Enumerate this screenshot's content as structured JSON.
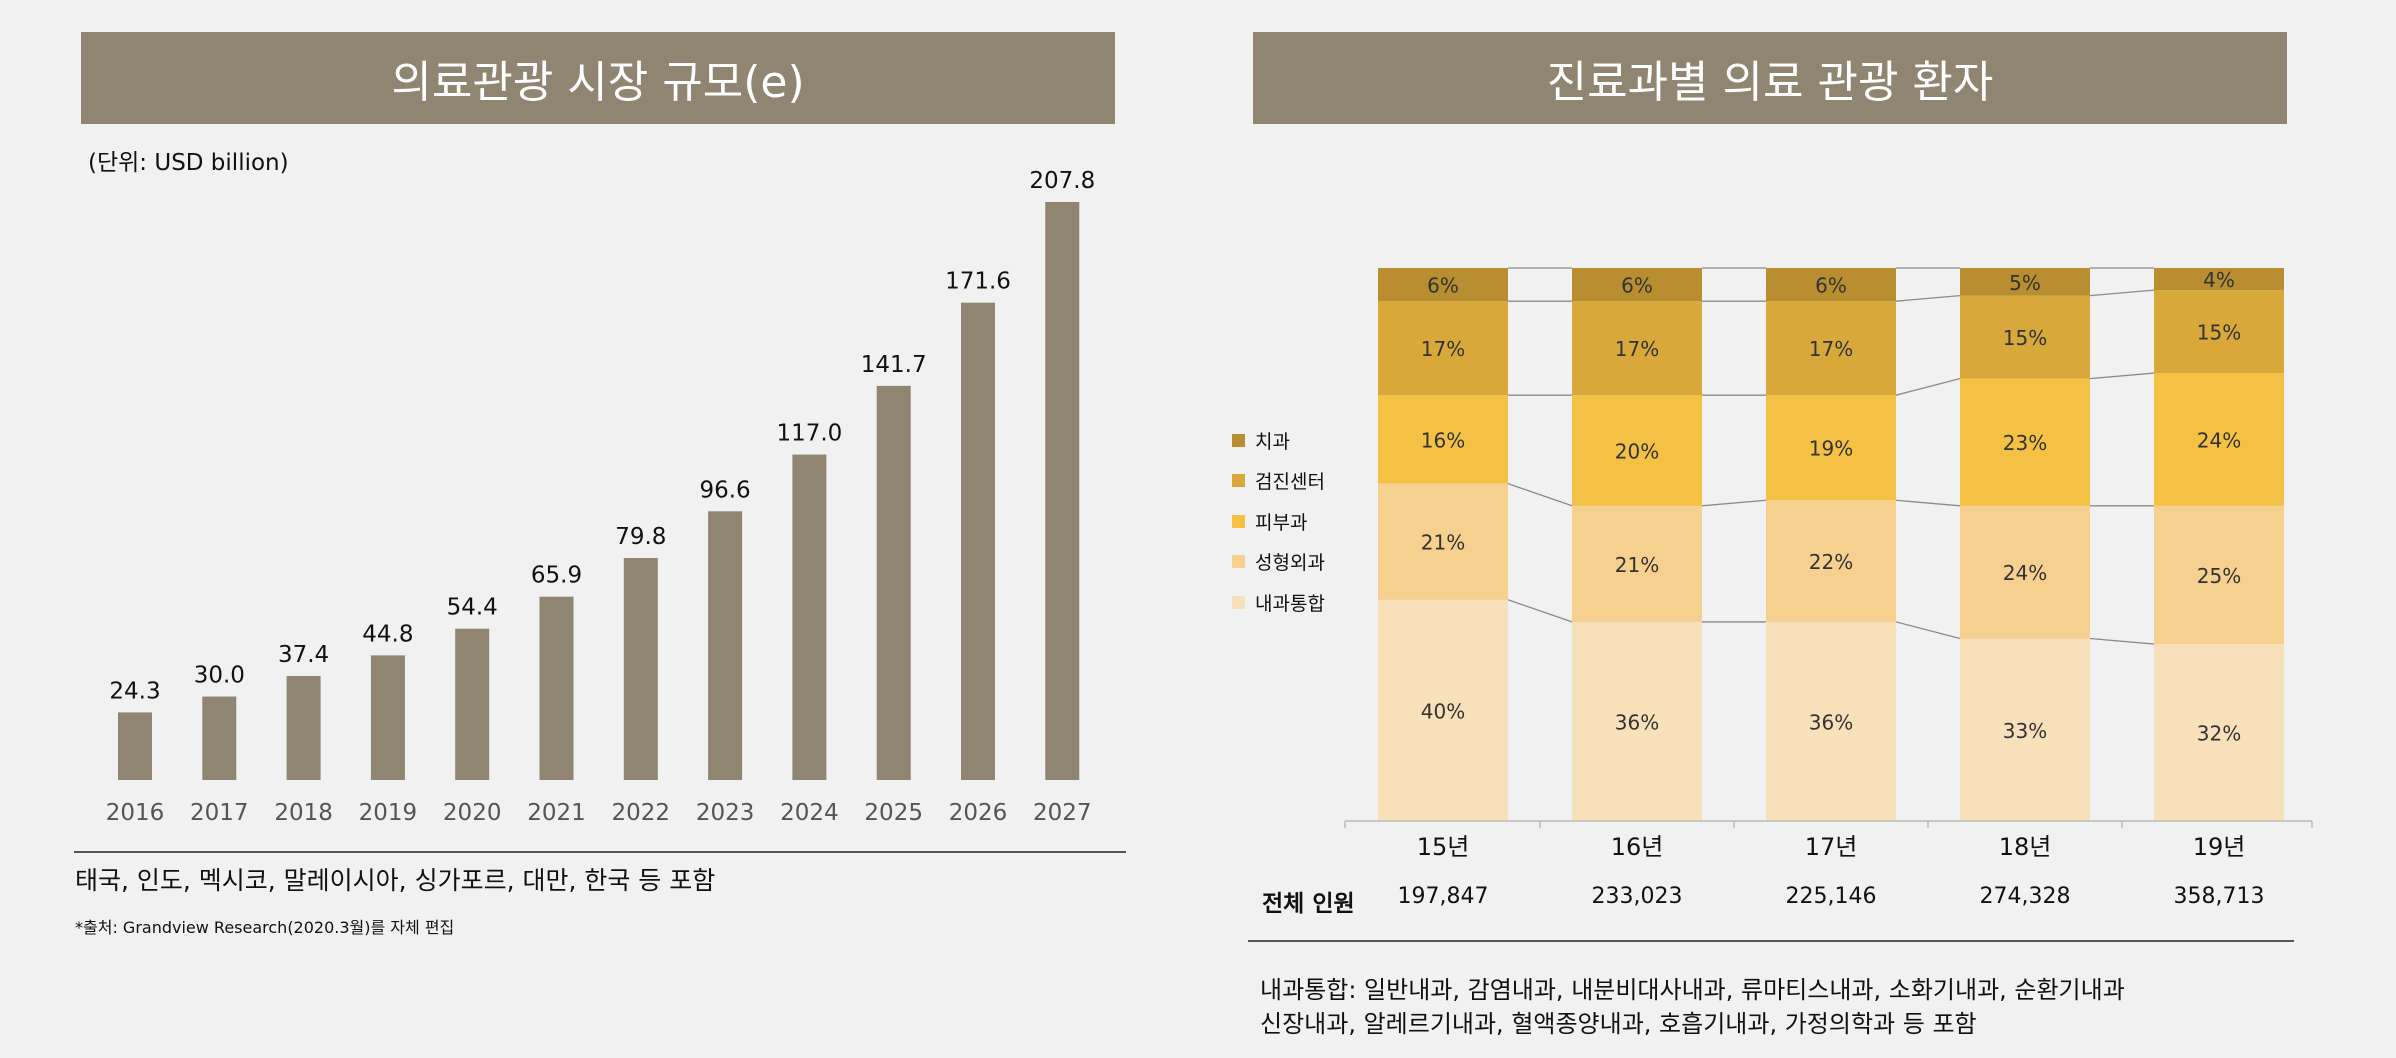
{
  "left": {
    "title": "의료관광 시장 규모(e)",
    "unit": "(단위: USD billion)",
    "note": "태국, 인도, 멕시코, 말레이시아, 싱가포르, 대만, 한국 등 포함",
    "source": "*출처: Grandview Research(2020.3월)를 자체 편집"
  },
  "right": {
    "title": "진료과별 의료 관광 환자",
    "total_label": "전체 인원",
    "totals": [
      "197,847",
      "233,023",
      "225,146",
      "274,328",
      "358,713"
    ],
    "footnote_line1": "내과통합: 일반내과, 감염내과, 내분비대사내과, 류마티스내과, 소화기내과, 순환기내과",
    "footnote_line2": "신장내과, 알레르기내과, 혈액종양내과, 호흡기내과, 가정의학과 등 포함"
  },
  "chart_data": [
    {
      "type": "bar",
      "title": "의료관광 시장 규모(e)",
      "ylabel": "(단위: USD billion)",
      "categories": [
        "2016",
        "2017",
        "2018",
        "2019",
        "2020",
        "2021",
        "2022",
        "2023",
        "2024",
        "2025",
        "2026",
        "2027"
      ],
      "values": [
        24.3,
        30.0,
        37.4,
        44.8,
        54.4,
        65.9,
        79.8,
        96.6,
        117.0,
        141.7,
        171.6,
        207.8
      ],
      "value_labels": [
        "24.3",
        "30.0",
        "37.4",
        "44.8",
        "54.4",
        "65.9",
        "79.8",
        "96.6",
        "117.0",
        "141.7",
        "171.6",
        "207.8"
      ],
      "ylim": [
        0,
        207.8
      ],
      "color": "#8f8570"
    },
    {
      "type": "bar",
      "stacked": "percent",
      "title": "진료과별 의료 관광 환자",
      "categories": [
        "15년",
        "16년",
        "17년",
        "18년",
        "19년"
      ],
      "series": [
        {
          "name": "내과통합",
          "color": "#f8e0bb",
          "values": [
            40,
            36,
            36,
            33,
            32
          ]
        },
        {
          "name": "성형외과",
          "color": "#f6d08e",
          "values": [
            21,
            21,
            22,
            24,
            25
          ]
        },
        {
          "name": "피부과",
          "color": "#f5c144",
          "values": [
            16,
            20,
            19,
            23,
            24
          ]
        },
        {
          "name": "검진센터",
          "color": "#d8a93a",
          "values": [
            17,
            17,
            17,
            15,
            15
          ]
        },
        {
          "name": "치과",
          "color": "#b88e30",
          "values": [
            6,
            6,
            6,
            5,
            4
          ]
        }
      ],
      "legend_order": [
        "치과",
        "검진센터",
        "피부과",
        "성형외과",
        "내과통합"
      ]
    }
  ]
}
